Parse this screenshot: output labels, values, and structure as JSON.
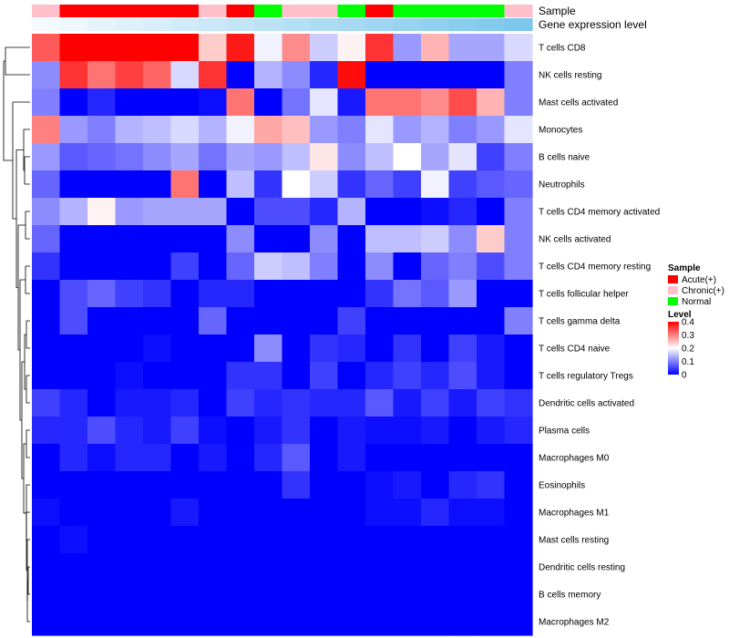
{
  "chart_data": {
    "type": "heatmap",
    "rows": [
      "T cells CD8",
      "NK cells resting",
      "Mast cells activated",
      "Monocytes",
      "B cells naive",
      "Neutrophils",
      "T cells CD4 memory activated",
      "NK cells activated",
      "T cells CD4 memory resting",
      "T cells follicular helper",
      "T cells gamma delta",
      "T cells CD4 naive",
      "T cells regulatory  Tregs",
      "Dendritic cells activated",
      "Plasma cells",
      "Macrophages M0",
      "Eosinophils",
      "Macrophages M1",
      "Mast cells resting",
      "Dendritic cells resting",
      "B cells memory",
      "Macrophages M2"
    ],
    "sample_groups": [
      "Chronic",
      "Acute",
      "Acute",
      "Acute",
      "Acute",
      "Acute",
      "Chronic",
      "Acute",
      "Normal",
      "Chronic",
      "Chronic",
      "Normal",
      "Acute",
      "Normal",
      "Normal",
      "Normal",
      "Normal",
      "Chronic"
    ],
    "values": [
      [
        0.33,
        0.4,
        0.4,
        0.4,
        0.4,
        0.4,
        0.24,
        0.38,
        0.19,
        0.29,
        0.16,
        0.21,
        0.36,
        0.12,
        0.26,
        0.13,
        0.13,
        0.17
      ],
      [
        0.11,
        0.36,
        0.31,
        0.35,
        0.32,
        0.17,
        0.36,
        0.0,
        0.14,
        0.11,
        0.03,
        0.39,
        0.0,
        0.0,
        0.0,
        0.0,
        0.0,
        0.1
      ],
      [
        0.1,
        0.0,
        0.03,
        0.0,
        0.0,
        0.0,
        0.01,
        0.31,
        0.0,
        0.09,
        0.18,
        0.02,
        0.31,
        0.31,
        0.29,
        0.34,
        0.26,
        0.1
      ],
      [
        0.3,
        0.12,
        0.1,
        0.14,
        0.15,
        0.17,
        0.14,
        0.19,
        0.27,
        0.25,
        0.12,
        0.1,
        0.18,
        0.12,
        0.14,
        0.1,
        0.12,
        0.18
      ],
      [
        0.12,
        0.07,
        0.08,
        0.09,
        0.11,
        0.13,
        0.09,
        0.13,
        0.12,
        0.15,
        0.22,
        0.11,
        0.15,
        0.2,
        0.13,
        0.18,
        0.05,
        0.1
      ],
      [
        0.08,
        0.0,
        0.0,
        0.0,
        0.0,
        0.31,
        0.0,
        0.15,
        0.04,
        0.2,
        0.16,
        0.04,
        0.08,
        0.05,
        0.19,
        0.05,
        0.07,
        0.08
      ],
      [
        0.11,
        0.14,
        0.21,
        0.12,
        0.13,
        0.13,
        0.13,
        0.0,
        0.06,
        0.06,
        0.03,
        0.14,
        0.0,
        0.0,
        0.01,
        0.03,
        0.0,
        0.1
      ],
      [
        0.08,
        0.0,
        0.0,
        0.0,
        0.0,
        0.0,
        0.0,
        0.11,
        0.0,
        0.0,
        0.11,
        0.0,
        0.15,
        0.15,
        0.16,
        0.11,
        0.24,
        0.1
      ],
      [
        0.04,
        0.0,
        0.0,
        0.0,
        0.0,
        0.05,
        0.0,
        0.08,
        0.16,
        0.15,
        0.1,
        0.0,
        0.11,
        0.0,
        0.08,
        0.1,
        0.06,
        0.1
      ],
      [
        0.0,
        0.06,
        0.08,
        0.05,
        0.04,
        0.0,
        0.03,
        0.03,
        0.0,
        0.0,
        0.0,
        0.0,
        0.04,
        0.09,
        0.07,
        0.12,
        0.0,
        0.0
      ],
      [
        0.0,
        0.06,
        0.0,
        0.0,
        0.0,
        0.0,
        0.08,
        0.0,
        0.0,
        0.0,
        0.0,
        0.05,
        0.0,
        0.0,
        0.0,
        0.0,
        0.0,
        0.1
      ],
      [
        0.0,
        0.0,
        0.0,
        0.0,
        0.01,
        0.0,
        0.0,
        0.0,
        0.11,
        0.0,
        0.04,
        0.03,
        0.0,
        0.04,
        0.0,
        0.05,
        0.02,
        0.0
      ],
      [
        0.0,
        0.0,
        0.0,
        0.01,
        0.0,
        0.0,
        0.0,
        0.04,
        0.04,
        0.0,
        0.05,
        0.0,
        0.03,
        0.05,
        0.03,
        0.06,
        0.02,
        0.0
      ],
      [
        0.05,
        0.03,
        0.0,
        0.02,
        0.02,
        0.03,
        0.0,
        0.05,
        0.03,
        0.04,
        0.03,
        0.03,
        0.07,
        0.02,
        0.05,
        0.02,
        0.05,
        0.04
      ],
      [
        0.03,
        0.03,
        0.06,
        0.03,
        0.02,
        0.05,
        0.01,
        0.0,
        0.02,
        0.04,
        0.0,
        0.02,
        0.01,
        0.01,
        0.02,
        0.0,
        0.02,
        0.03
      ],
      [
        0.0,
        0.03,
        0.01,
        0.03,
        0.03,
        0.0,
        0.02,
        0.0,
        0.03,
        0.07,
        0.0,
        0.02,
        0.0,
        0.0,
        0.0,
        0.0,
        0.0,
        0.0
      ],
      [
        0.0,
        0.0,
        0.0,
        0.0,
        0.0,
        0.0,
        0.0,
        0.0,
        0.0,
        0.04,
        0.0,
        0.0,
        0.01,
        0.02,
        0.0,
        0.03,
        0.04,
        0.0
      ],
      [
        0.01,
        0.0,
        0.0,
        0.0,
        0.0,
        0.02,
        0.0,
        0.0,
        0.0,
        0.0,
        0.0,
        0.0,
        0.01,
        0.01,
        0.03,
        0.01,
        0.01,
        0.0
      ],
      [
        0.0,
        0.01,
        0.0,
        0.0,
        0.0,
        0.0,
        0.0,
        0.0,
        0.0,
        0.0,
        0.0,
        0.0,
        0.0,
        0.0,
        0.0,
        0.0,
        0.0,
        0.0
      ],
      [
        0.0,
        0.0,
        0.0,
        0.0,
        0.0,
        0.0,
        0.0,
        0.0,
        0.0,
        0.0,
        0.0,
        0.0,
        0.0,
        0.0,
        0.0,
        0.0,
        0.0,
        0.0
      ],
      [
        0.0,
        0.0,
        0.0,
        0.0,
        0.0,
        0.0,
        0.0,
        0.0,
        0.0,
        0.0,
        0.0,
        0.0,
        0.0,
        0.0,
        0.0,
        0.0,
        0.0,
        0.0
      ],
      [
        0.0,
        0.0,
        0.0,
        0.0,
        0.0,
        0.0,
        0.0,
        0.0,
        0.0,
        0.0,
        0.0,
        0.0,
        0.0,
        0.0,
        0.0,
        0.0,
        0.0,
        0.0
      ]
    ],
    "annotation_labels": [
      "Sample",
      "Gene expression level"
    ],
    "sample_legend": {
      "title": "Sample",
      "entries": [
        {
          "label": "Acute(+)",
          "color": "#ff0000"
        },
        {
          "label": "Chronic(+)",
          "color": "#ffc0cb"
        },
        {
          "label": "Normal",
          "color": "#00ff00"
        }
      ]
    },
    "level_legend": {
      "title": "Level",
      "ticks": [
        "0.4",
        "0.3",
        "0.2",
        "0.1",
        "0"
      ],
      "tick_values": [
        0.4,
        0.3,
        0.2,
        0.1,
        0
      ],
      "range": [
        0,
        0.4
      ],
      "low_color": "#0000ff",
      "mid_color": "#ffffff",
      "high_color": "#ff0000"
    },
    "gene_expression_colors": [
      "#f4fafd",
      "#edf7fc",
      "#e6f4fb",
      "#dff1fa",
      "#d8eef9",
      "#d1ebf8",
      "#cae8f7",
      "#c3e5f6",
      "#bce2f5",
      "#b5dff4",
      "#aedcf3",
      "#a7d9f2",
      "#a0d6f1",
      "#99d3f0",
      "#92d0ef",
      "#8bcdee",
      "#84caed",
      "#7dc7ec"
    ]
  }
}
